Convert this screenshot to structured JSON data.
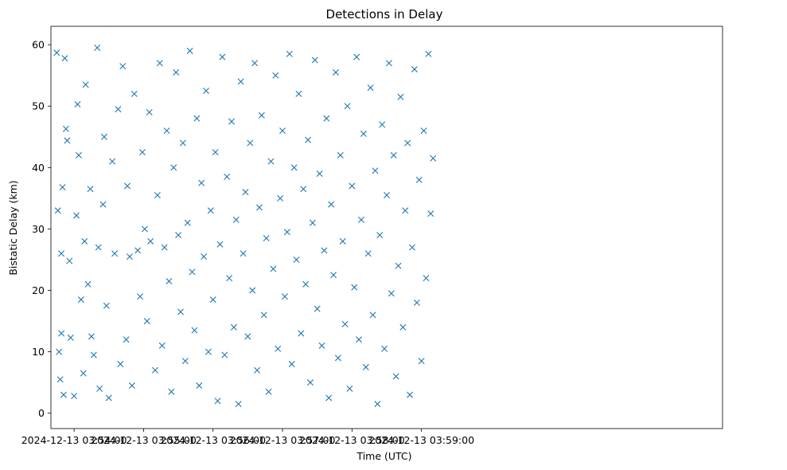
{
  "chart_data": {
    "type": "scatter",
    "title": "Detections in Delay",
    "xlabel": "Time (UTC)",
    "ylabel": "Bistatic Delay (km)",
    "marker": "x",
    "color": "#1f77b4",
    "grid": false,
    "xlim_seconds": [
      -20,
      560
    ],
    "ylim": [
      -2.5,
      63
    ],
    "x_ticks": [
      {
        "seconds": 0,
        "label": "2024-12-13 03:54:00"
      },
      {
        "seconds": 60,
        "label": "2024-12-13 03:55:00"
      },
      {
        "seconds": 120,
        "label": "2024-12-13 03:56:00"
      },
      {
        "seconds": 180,
        "label": "2024-12-13 03:57:00"
      },
      {
        "seconds": 240,
        "label": "2024-12-13 03:58:00"
      },
      {
        "seconds": 300,
        "label": "2024-12-13 03:59:00"
      }
    ],
    "y_ticks": [
      0,
      10,
      20,
      30,
      40,
      50,
      60
    ],
    "x_range_seconds_of_data": [
      -16,
      310
    ],
    "sampled_points_seconds_km": [
      [
        -15,
        58.7
      ],
      [
        -14,
        33
      ],
      [
        -13,
        10
      ],
      [
        -12,
        5.5
      ],
      [
        -11,
        26
      ],
      [
        -11,
        13
      ],
      [
        -10,
        36.8
      ],
      [
        -9,
        3
      ],
      [
        -8,
        57.8
      ],
      [
        -7,
        46.3
      ],
      [
        -6,
        44.4
      ],
      [
        -4,
        24.8
      ],
      [
        -3,
        12.3
      ],
      [
        0,
        2.8
      ],
      [
        2,
        32.2
      ],
      [
        3,
        50.3
      ],
      [
        4,
        42
      ],
      [
        6,
        18.5
      ],
      [
        8,
        6.5
      ],
      [
        9,
        28
      ],
      [
        10,
        53.5
      ],
      [
        12,
        21
      ],
      [
        14,
        36.5
      ],
      [
        15,
        12.5
      ],
      [
        17,
        9.5
      ],
      [
        20,
        59.5
      ],
      [
        21,
        27
      ],
      [
        22,
        4
      ],
      [
        25,
        34
      ],
      [
        26,
        45
      ],
      [
        28,
        17.5
      ],
      [
        30,
        2.5
      ],
      [
        33,
        41
      ],
      [
        35,
        26
      ],
      [
        38,
        49.5
      ],
      [
        40,
        8
      ],
      [
        42,
        56.5
      ],
      [
        45,
        12
      ],
      [
        46,
        37
      ],
      [
        48,
        25.5
      ],
      [
        50,
        4.5
      ],
      [
        52,
        52
      ],
      [
        55,
        26.5
      ],
      [
        57,
        19
      ],
      [
        59,
        42.5
      ],
      [
        61,
        30
      ],
      [
        63,
        15
      ],
      [
        65,
        49
      ],
      [
        66,
        28
      ],
      [
        70,
        7
      ],
      [
        72,
        35.5
      ],
      [
        74,
        57
      ],
      [
        76,
        11
      ],
      [
        78,
        27
      ],
      [
        80,
        46
      ],
      [
        82,
        21.5
      ],
      [
        84,
        3.5
      ],
      [
        86,
        40
      ],
      [
        88,
        55.5
      ],
      [
        90,
        29
      ],
      [
        92,
        16.5
      ],
      [
        94,
        44
      ],
      [
        96,
        8.5
      ],
      [
        98,
        31
      ],
      [
        100,
        59
      ],
      [
        102,
        23
      ],
      [
        104,
        13.5
      ],
      [
        106,
        48
      ],
      [
        108,
        4.5
      ],
      [
        110,
        37.5
      ],
      [
        112,
        25.5
      ],
      [
        114,
        52.5
      ],
      [
        116,
        10
      ],
      [
        118,
        33
      ],
      [
        120,
        18.5
      ],
      [
        122,
        42.5
      ],
      [
        124,
        2
      ],
      [
        126,
        27.5
      ],
      [
        128,
        58
      ],
      [
        130,
        9.5
      ],
      [
        132,
        38.5
      ],
      [
        134,
        22
      ],
      [
        136,
        47.5
      ],
      [
        138,
        14
      ],
      [
        140,
        31.5
      ],
      [
        142,
        1.5
      ],
      [
        144,
        54
      ],
      [
        146,
        26
      ],
      [
        148,
        36
      ],
      [
        150,
        12.5
      ],
      [
        152,
        44
      ],
      [
        154,
        20
      ],
      [
        156,
        57
      ],
      [
        158,
        7
      ],
      [
        160,
        33.5
      ],
      [
        162,
        48.5
      ],
      [
        164,
        16
      ],
      [
        166,
        28.5
      ],
      [
        168,
        3.5
      ],
      [
        170,
        41
      ],
      [
        172,
        23.5
      ],
      [
        174,
        55
      ],
      [
        176,
        10.5
      ],
      [
        178,
        35
      ],
      [
        180,
        46
      ],
      [
        182,
        19
      ],
      [
        184,
        29.5
      ],
      [
        186,
        58.5
      ],
      [
        188,
        8
      ],
      [
        190,
        40
      ],
      [
        192,
        25
      ],
      [
        194,
        52
      ],
      [
        196,
        13
      ],
      [
        198,
        36.5
      ],
      [
        200,
        21
      ],
      [
        202,
        44.5
      ],
      [
        204,
        5
      ],
      [
        206,
        31
      ],
      [
        208,
        57.5
      ],
      [
        210,
        17
      ],
      [
        212,
        39
      ],
      [
        214,
        11
      ],
      [
        216,
        26.5
      ],
      [
        218,
        48
      ],
      [
        220,
        2.5
      ],
      [
        222,
        34
      ],
      [
        224,
        22.5
      ],
      [
        226,
        55.5
      ],
      [
        228,
        9
      ],
      [
        230,
        42
      ],
      [
        232,
        28
      ],
      [
        234,
        14.5
      ],
      [
        236,
        50
      ],
      [
        238,
        4
      ],
      [
        240,
        37
      ],
      [
        242,
        20.5
      ],
      [
        244,
        58
      ],
      [
        246,
        12
      ],
      [
        248,
        31.5
      ],
      [
        250,
        45.5
      ],
      [
        252,
        7.5
      ],
      [
        254,
        26
      ],
      [
        256,
        53
      ],
      [
        258,
        16
      ],
      [
        260,
        39.5
      ],
      [
        262,
        1.5
      ],
      [
        264,
        29
      ],
      [
        266,
        47
      ],
      [
        268,
        10.5
      ],
      [
        270,
        35.5
      ],
      [
        272,
        57
      ],
      [
        274,
        19.5
      ],
      [
        276,
        42
      ],
      [
        278,
        6
      ],
      [
        280,
        24
      ],
      [
        282,
        51.5
      ],
      [
        284,
        14
      ],
      [
        286,
        33
      ],
      [
        288,
        44
      ],
      [
        290,
        3
      ],
      [
        292,
        27
      ],
      [
        294,
        56
      ],
      [
        296,
        18
      ],
      [
        298,
        38
      ],
      [
        300,
        8.5
      ],
      [
        302,
        46
      ],
      [
        304,
        22
      ],
      [
        306,
        58.5
      ],
      [
        308,
        32.5
      ],
      [
        310,
        41.5
      ]
    ]
  }
}
